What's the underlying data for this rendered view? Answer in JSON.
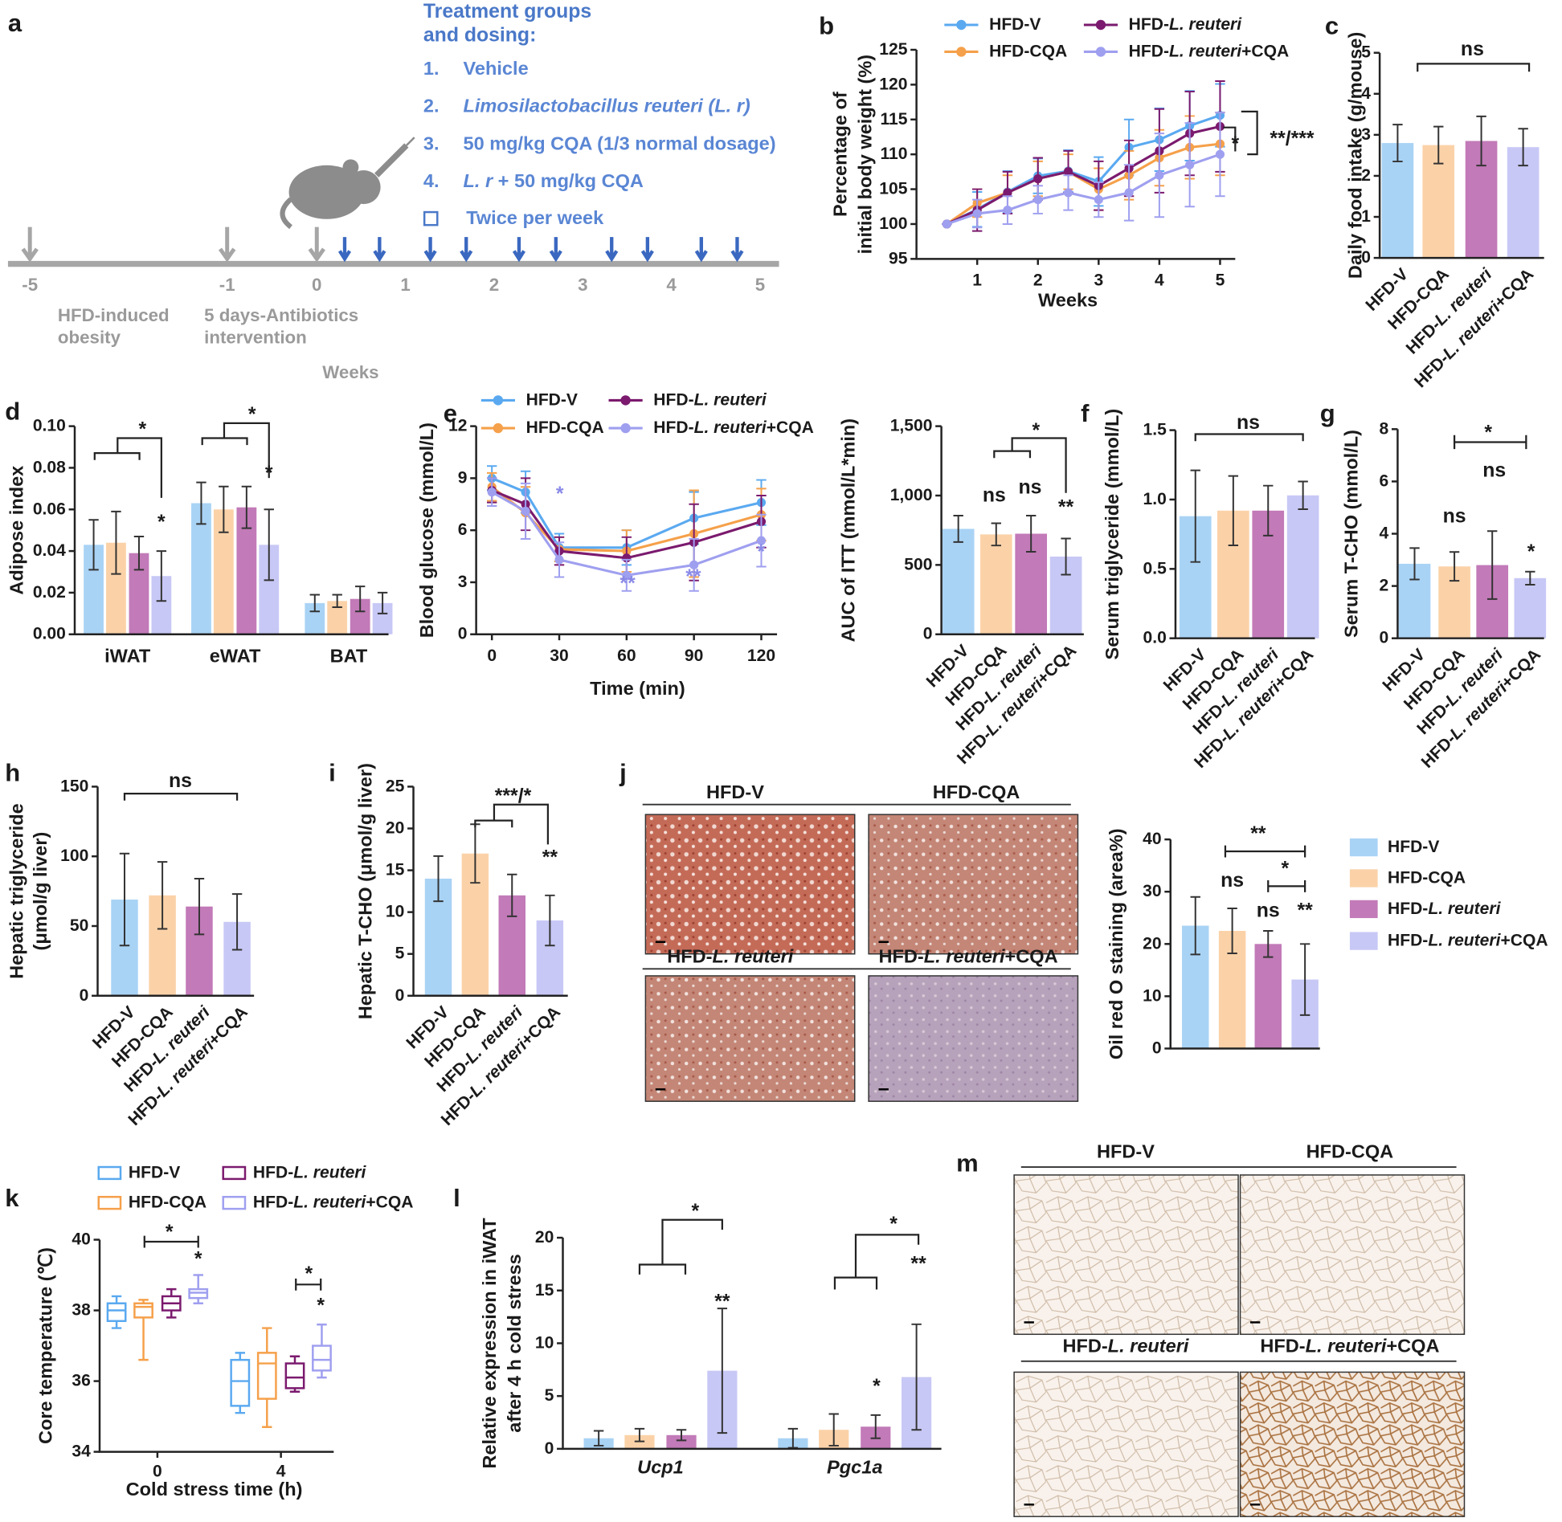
{
  "panel_labels": [
    "a",
    "b",
    "c",
    "d",
    "e",
    "f",
    "g",
    "h",
    "i",
    "j",
    "k",
    "l",
    "m"
  ],
  "timeline": {
    "ticks": [
      -5,
      -1,
      0,
      1,
      2,
      3,
      4,
      5
    ],
    "axis_label": "Weeks",
    "phases": [
      [
        "HFD-induced",
        "obesity"
      ],
      [
        "5 days-Antibiotics",
        "intervention"
      ]
    ]
  },
  "treatment": {
    "title": [
      "Treatment groups",
      "and dosing:"
    ],
    "numbers": [
      "1.",
      "2.",
      "3.",
      "4."
    ],
    "groups": [
      "Vehicle",
      "Limosilactobacillus reuteri  (L. r)",
      "50 mg/kg CQA (1/3 normal dosage)",
      "L. r + 50 mg/kg CQA"
    ],
    "note": "Twice per week"
  },
  "micrographs": [
    {
      "titles": [
        "HFD-V",
        "HFD-CQA",
        "HFD-L. reuteri",
        "HFD-L. reuteri+CQA"
      ]
    },
    {
      "titles": [
        "HFD-V",
        "HFD-CQA",
        "HFD-L. reuteri",
        "HFD-L. reuteri+CQA"
      ]
    }
  ],
  "chart_data": [
    {
      "type": "line",
      "xlabel": "Weeks",
      "ylabel": [
        "Percentage of",
        "initial body weight (%)"
      ],
      "x": [
        0.5,
        1,
        1.5,
        2,
        2.5,
        3,
        3.5,
        4,
        4.5,
        5
      ],
      "xlim": [
        0,
        5.25
      ],
      "xticks": [
        1,
        2,
        3,
        4,
        5
      ],
      "ylim": [
        95,
        125
      ],
      "yticks": [
        95,
        100,
        105,
        110,
        115,
        120,
        125
      ],
      "series": [
        {
          "name": "HFD-V",
          "color": "#5aa9f0",
          "values": [
            100,
            102.1,
            104.6,
            106.9,
            107.6,
            106.1,
            111,
            112.1,
            114.1,
            115.6
          ],
          "errors": [
            0,
            2.5,
            3,
            2.5,
            3,
            3.5,
            4,
            4.5,
            5,
            4.5
          ]
        },
        {
          "name": "HFD-CQA",
          "color": "#f5a04a",
          "values": [
            100,
            103,
            104.5,
            106.5,
            107.5,
            105,
            107,
            109.5,
            111,
            111.5
          ],
          "errors": [
            0,
            2,
            2.5,
            2.5,
            2.5,
            3,
            3.5,
            4,
            4.5,
            4.5
          ]
        },
        {
          "name": "HFD-L. reuteri",
          "color": "#7b1a6e",
          "values": [
            100,
            102,
            104.5,
            106.5,
            107.5,
            105.5,
            108,
            110.5,
            113,
            114
          ],
          "errors": [
            0,
            3,
            3,
            3,
            3,
            3.5,
            4,
            6,
            6,
            6.5
          ]
        },
        {
          "name": "HFD-L. reuteri+CQA",
          "color": "#9f9ff0",
          "values": [
            100,
            101.5,
            102,
            103.5,
            104.5,
            103.5,
            104.5,
            107,
            108.5,
            110
          ],
          "errors": [
            0,
            2,
            2,
            2,
            2.5,
            2.5,
            4,
            6,
            6,
            6
          ]
        }
      ],
      "annotations": [
        "*",
        "**/***"
      ]
    },
    {
      "type": "bar",
      "ylabel": "Daily food intake (g/mouse)",
      "categories": [
        "HFD-V",
        "HFD-CQA",
        "HFD-L. reuteri",
        "HFD-L. reuteri+CQA"
      ],
      "colors": [
        "#a9d3f5",
        "#fbd2a8",
        "#c27ab8",
        "#c8c8f6"
      ],
      "values": [
        2.8,
        2.75,
        2.85,
        2.7
      ],
      "errors": [
        0.45,
        0.45,
        0.6,
        0.45
      ],
      "ylim": [
        0,
        5
      ],
      "yticks": [
        0,
        1,
        2,
        3,
        4,
        5
      ],
      "annotations": [
        "ns"
      ]
    },
    {
      "type": "bar",
      "ylabel": "Adipose index",
      "categories": [
        "iWAT",
        "eWAT",
        "BAT"
      ],
      "series": [
        {
          "color": "#a9d3f5",
          "values": [
            0.043,
            0.063,
            0.015
          ],
          "errors": [
            0.012,
            0.01,
            0.004
          ]
        },
        {
          "color": "#fbd2a8",
          "values": [
            0.044,
            0.06,
            0.016
          ],
          "errors": [
            0.015,
            0.011,
            0.003
          ]
        },
        {
          "color": "#c27ab8",
          "values": [
            0.039,
            0.061,
            0.017
          ],
          "errors": [
            0.008,
            0.01,
            0.006
          ]
        },
        {
          "color": "#c8c8f6",
          "values": [
            0.028,
            0.043,
            0.015
          ],
          "errors": [
            0.012,
            0.017,
            0.005
          ]
        }
      ],
      "ylim": [
        0,
        0.1
      ],
      "yticks": [
        {
          "value": 0,
          "label": "0.00"
        },
        {
          "value": 0.02,
          "label": "0.02"
        },
        {
          "value": 0.04,
          "label": "0.04"
        },
        {
          "value": 0.06,
          "label": "0.06"
        },
        {
          "value": 0.08,
          "label": "0.08"
        },
        {
          "value": 0.1,
          "label": "0.10"
        }
      ],
      "annotations": [
        "*",
        "*",
        "*",
        "*"
      ]
    },
    {
      "type": "line",
      "xlabel": "Time (min)",
      "ylabel": "Blood glucose (mmol/L)",
      "x": [
        0,
        15,
        30,
        60,
        90,
        120
      ],
      "xlim": [
        -7,
        127
      ],
      "xticks": [
        0,
        30,
        60,
        90,
        120
      ],
      "ylim": [
        0,
        12
      ],
      "yticks": [
        0,
        3,
        6,
        9,
        12
      ],
      "series": [
        {
          "name": "HFD-V",
          "color": "#5aa9f0",
          "values": [
            9,
            8.2,
            5,
            5,
            6.7,
            7.6
          ],
          "errors": [
            0.7,
            1.2,
            0.8,
            1,
            1.5,
            1.3
          ]
        },
        {
          "name": "HFD-CQA",
          "color": "#f5a04a",
          "values": [
            8.5,
            7,
            4.9,
            4.8,
            5.8,
            6.9
          ],
          "errors": [
            0.8,
            1.5,
            0.7,
            1.2,
            2.5,
            1.5
          ]
        },
        {
          "name": "HFD-L. reuteri",
          "color": "#7b1a6e",
          "values": [
            8.3,
            7.5,
            4.8,
            4.4,
            5.3,
            6.5
          ],
          "errors": [
            0.7,
            1.5,
            0.8,
            1.2,
            2.2,
            1.5
          ]
        },
        {
          "name": "HFD-L. reuteri+CQA",
          "color": "#9f9ff0",
          "values": [
            8.2,
            7.1,
            4.3,
            3.4,
            4,
            5.4
          ],
          "errors": [
            0.8,
            1.6,
            1,
            0.9,
            1.5,
            1.5
          ]
        }
      ],
      "annotations": [
        "*",
        "**",
        "**",
        "*"
      ]
    },
    {
      "type": "bar",
      "ylabel": "AUC of ITT (mmol/L*min)",
      "categories": [
        "HFD-V",
        "HFD-CQA",
        "HFD-L. reuteri",
        "HFD-L. reuteri+CQA"
      ],
      "colors": [
        "#a9d3f5",
        "#fbd2a8",
        "#c27ab8",
        "#c8c8f6"
      ],
      "values": [
        760,
        720,
        725,
        560
      ],
      "errors": [
        95,
        80,
        130,
        130
      ],
      "ylim": [
        0,
        1500
      ],
      "yticks": [
        0,
        500,
        {
          "value": 1000,
          "label": "1,000"
        },
        {
          "value": 1500,
          "label": "1,500"
        }
      ],
      "annotations": [
        "*",
        "ns",
        "ns",
        "**"
      ]
    },
    {
      "type": "bar",
      "ylabel": "Serum triglyceride (mmol/L)",
      "categories": [
        "HFD-V",
        "HFD-CQA",
        "HFD-L. reuteri",
        "HFD-L. reuteri+CQA"
      ],
      "colors": [
        "#a9d3f5",
        "#fbd2a8",
        "#c27ab8",
        "#c8c8f6"
      ],
      "values": [
        0.88,
        0.92,
        0.92,
        1.03
      ],
      "errors": [
        0.33,
        0.25,
        0.18,
        0.1
      ],
      "ylim": [
        0,
        1.5
      ],
      "yticks": [
        {
          "value": 0,
          "label": "0.0"
        },
        {
          "value": 0.5,
          "label": "0.5"
        },
        {
          "value": 1,
          "label": "1.0"
        },
        {
          "value": 1.5,
          "label": "1.5"
        }
      ],
      "annotations": [
        "ns"
      ]
    },
    {
      "type": "bar",
      "ylabel": "Serum T-CHO (mmol/L)",
      "categories": [
        "HFD-V",
        "HFD-CQA",
        "HFD-L. reuteri",
        "HFD-L. reuteri+CQA"
      ],
      "colors": [
        "#a9d3f5",
        "#fbd2a8",
        "#c27ab8",
        "#c8c8f6"
      ],
      "values": [
        2.85,
        2.75,
        2.8,
        2.3
      ],
      "errors": [
        0.6,
        0.55,
        1.3,
        0.25
      ],
      "ylim": [
        0,
        8
      ],
      "yticks": [
        0,
        2,
        4,
        6,
        8
      ],
      "annotations": [
        "*",
        "ns",
        "ns",
        "*"
      ]
    },
    {
      "type": "bar",
      "ylabel": [
        "Hepatic triglyceride",
        "(μmol/g liver)"
      ],
      "categories": [
        "HFD-V",
        "HFD-CQA",
        "HFD-L. reuteri",
        "HFD-L. reuteri+CQA"
      ],
      "colors": [
        "#a9d3f5",
        "#fbd2a8",
        "#c27ab8",
        "#c8c8f6"
      ],
      "values": [
        69,
        72,
        64,
        53
      ],
      "errors": [
        33,
        24,
        20,
        20
      ],
      "ylim": [
        0,
        150
      ],
      "yticks": [
        0,
        50,
        100,
        150
      ],
      "annotations": [
        "ns"
      ]
    },
    {
      "type": "bar",
      "ylabel": "Hepatic T-CHO (μmol/g liver)",
      "categories": [
        "HFD-V",
        "HFD-CQA",
        "HFD-L. reuteri",
        "HFD-L. reuteri+CQA"
      ],
      "colors": [
        "#a9d3f5",
        "#fbd2a8",
        "#c27ab8",
        "#c8c8f6"
      ],
      "values": [
        14,
        17,
        12,
        9
      ],
      "errors": [
        2.7,
        3.5,
        2.5,
        3
      ],
      "ylim": [
        0,
        25
      ],
      "yticks": [
        0,
        5,
        10,
        15,
        20,
        25
      ],
      "annotations": [
        "***/*",
        "**"
      ]
    },
    {
      "type": "bar",
      "ylabel": "Oil red O staining (area%)",
      "categories": [
        "HFD-V",
        "HFD-CQA",
        "HFD-L. reuteri",
        "HFD-L. reuteri+CQA"
      ],
      "colors": [
        "#a9d3f5",
        "#fbd2a8",
        "#c27ab8",
        "#c8c8f6"
      ],
      "values": [
        23.5,
        22.5,
        20,
        13.2
      ],
      "errors": [
        5.5,
        4.3,
        2.5,
        6.8
      ],
      "ylim": [
        0,
        40
      ],
      "yticks": [
        0,
        10,
        20,
        30,
        40
      ],
      "annotations": [
        "**",
        "ns",
        "*",
        "ns",
        "**"
      ]
    },
    {
      "type": "box",
      "xlabel": "Cold stress time (h)",
      "ylabel": "Core temperature (℃)",
      "categories": [
        0,
        4
      ],
      "ylim": [
        34,
        40
      ],
      "yticks": [
        34,
        36,
        38,
        40
      ],
      "series": [
        {
          "name": "HFD-V",
          "color": "#5aa9f0",
          "boxes": [
            {
              "min": 37.5,
              "q1": 37.7,
              "median": 38,
              "q3": 38.2,
              "max": 38.4
            },
            {
              "min": 35.1,
              "q1": 35.3,
              "median": 36,
              "q3": 36.6,
              "max": 36.8
            }
          ]
        },
        {
          "name": "HFD-CQA",
          "color": "#f5a04a",
          "boxes": [
            {
              "min": 36.6,
              "q1": 37.8,
              "median": 38.1,
              "q3": 38.2,
              "max": 38.3
            },
            {
              "min": 34.7,
              "q1": 35.5,
              "median": 36.5,
              "q3": 36.8,
              "max": 37.5
            }
          ]
        },
        {
          "name": "HFD-L. reuteri",
          "color": "#7b1a6e",
          "boxes": [
            {
              "min": 37.8,
              "q1": 38,
              "median": 38.2,
              "q3": 38.4,
              "max": 38.6
            },
            {
              "min": 35.7,
              "q1": 35.8,
              "median": 36.1,
              "q3": 36.5,
              "max": 36.7
            }
          ]
        },
        {
          "name": "HFD-L. reuteri+CQA",
          "color": "#9f9ff0",
          "boxes": [
            {
              "min": 38.2,
              "q1": 38.35,
              "median": 38.5,
              "q3": 38.6,
              "max": 39
            },
            {
              "min": 36.1,
              "q1": 36.3,
              "median": 36.6,
              "q3": 37,
              "max": 37.6
            }
          ]
        }
      ],
      "annotations": [
        "*",
        "*",
        "*",
        "*"
      ]
    },
    {
      "type": "bar",
      "ylabel": [
        "Relative expression in iWAT",
        "after 4 h cold stress"
      ],
      "categories": [
        "Ucp1",
        "Pgc1a"
      ],
      "series": [
        {
          "color": "#a9d3f5",
          "values": [
            1,
            1
          ],
          "errors": [
            0.7,
            0.9
          ]
        },
        {
          "color": "#fbd2a8",
          "values": [
            1.3,
            1.8
          ],
          "errors": [
            0.6,
            1.5
          ]
        },
        {
          "color": "#c27ab8",
          "values": [
            1.3,
            2.1
          ],
          "errors": [
            0.5,
            1.1
          ]
        },
        {
          "color": "#c8c8f6",
          "values": [
            7.4,
            6.8
          ],
          "errors": [
            5.9,
            5
          ]
        }
      ],
      "ylim": [
        0,
        20
      ],
      "yticks": [
        0,
        5,
        10,
        15,
        20
      ],
      "annotations": [
        "*",
        "**",
        "*",
        "**",
        "*"
      ]
    }
  ]
}
